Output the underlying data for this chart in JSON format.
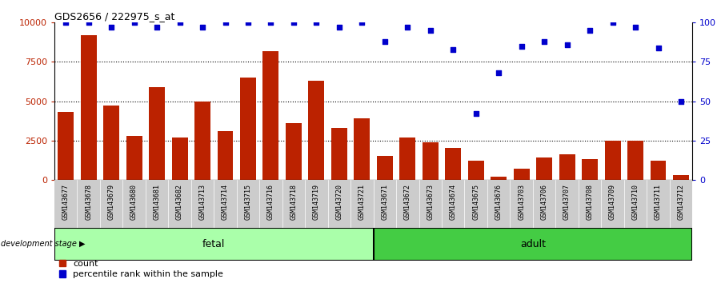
{
  "title": "GDS2656 / 222975_s_at",
  "categories": [
    "GSM143677",
    "GSM143678",
    "GSM143679",
    "GSM143680",
    "GSM143681",
    "GSM143682",
    "GSM143713",
    "GSM143714",
    "GSM143715",
    "GSM143716",
    "GSM143718",
    "GSM143719",
    "GSM143720",
    "GSM143721",
    "GSM143671",
    "GSM143672",
    "GSM143673",
    "GSM143674",
    "GSM143675",
    "GSM143676",
    "GSM143703",
    "GSM143706",
    "GSM143707",
    "GSM143708",
    "GSM143709",
    "GSM143710",
    "GSM143711",
    "GSM143712"
  ],
  "counts": [
    4300,
    9200,
    4700,
    2800,
    5900,
    2700,
    5000,
    3100,
    6500,
    8200,
    3600,
    6300,
    3300,
    3900,
    1500,
    2700,
    2400,
    2000,
    1200,
    200,
    700,
    1400,
    1600,
    1300,
    2500,
    2500,
    1200,
    300
  ],
  "percentiles": [
    100,
    100,
    97,
    100,
    97,
    100,
    97,
    100,
    100,
    100,
    100,
    100,
    97,
    100,
    88,
    97,
    95,
    83,
    42,
    68,
    85,
    88,
    86,
    95,
    100,
    97,
    84,
    50
  ],
  "fetal_count": 14,
  "adult_count": 14,
  "bar_color": "#bb2200",
  "percentile_color": "#0000cc",
  "fetal_color": "#aaffaa",
  "adult_color": "#44cc44",
  "xtick_bg_color": "#cccccc",
  "ylim_left": [
    0,
    10000
  ],
  "ylim_right": [
    0,
    100
  ],
  "yticks_left": [
    0,
    2500,
    5000,
    7500,
    10000
  ],
  "yticks_right": [
    0,
    25,
    50,
    75,
    100
  ],
  "grid_values": [
    2500,
    5000,
    7500
  ],
  "legend_count_label": "count",
  "legend_pct_label": "percentile rank within the sample",
  "dev_stage_label": "development stage",
  "fetal_label": "fetal",
  "adult_label": "adult"
}
